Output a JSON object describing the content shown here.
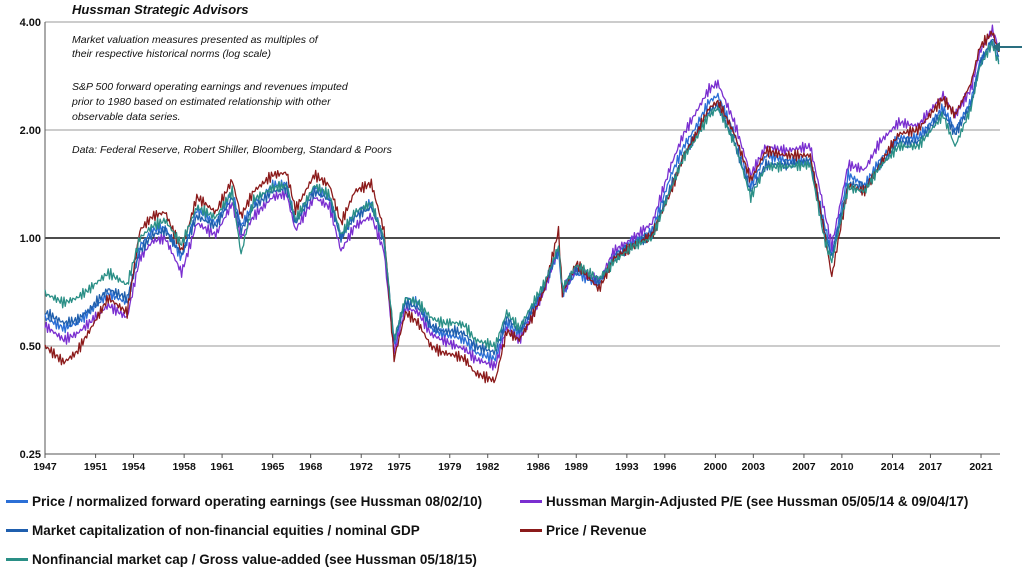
{
  "chart_data": {
    "type": "line",
    "title": "Hussman Strategic Advisors",
    "notes": [
      "Market valuation measures presented as multiples of",
      "their respective historical norms (log scale)",
      "S&P 500 forward operating earnings and revenues imputed",
      "prior to 1980  based on estimated relationship with other",
      "observable data series.",
      "Data: Federal Reserve, Robert Shiller,  Bloomberg, Standard & Poors"
    ],
    "y_scale": "log",
    "ylim": [
      0.25,
      4.0
    ],
    "yticks": [
      "0.25",
      "0.50",
      "1.00",
      "2.00",
      "4.00"
    ],
    "xlim": [
      1947,
      2022.5
    ],
    "xticks": [
      "1947",
      "1951",
      "1954",
      "1958",
      "1961",
      "1965",
      "1968",
      "1972",
      "1975",
      "1979",
      "1982",
      "1986",
      "1989",
      "1993",
      "1996",
      "2000",
      "2003",
      "2007",
      "2010",
      "2014",
      "2017",
      "2021"
    ],
    "reference_line": 1.0,
    "grid": true,
    "legend_position": "bottom",
    "x": [
      1947,
      1948.5,
      1949.5,
      1950.5,
      1952,
      1953.5,
      1954.5,
      1955.5,
      1956.5,
      1957.8,
      1959,
      1960.5,
      1961.8,
      1962.5,
      1963.5,
      1965,
      1966.1,
      1966.8,
      1968.3,
      1969.5,
      1970.4,
      1971.5,
      1972.8,
      1973.8,
      1974.6,
      1975.5,
      1976.5,
      1977.5,
      1978.4,
      1979.5,
      1980.2,
      1981,
      1982.6,
      1983.5,
      1984.5,
      1985.5,
      1986.5,
      1987.6,
      1987.9,
      1989,
      1990.8,
      1992,
      1993.5,
      1995,
      1996.5,
      1997.5,
      1998.5,
      1999.5,
      2000.2,
      2001.5,
      2002.8,
      2004,
      2005.5,
      2007.5,
      2008.6,
      2009.2,
      2010.5,
      2011.8,
      2013,
      2014.5,
      2016,
      2018,
      2018.95,
      2020.2,
      2020.9,
      2021.9,
      2022.4
    ],
    "series": [
      {
        "name": "Price / normalized forward operating earnings (see Hussman 08/02/10)",
        "color": "#2b6fd6",
        "values": [
          0.6,
          0.56,
          0.58,
          0.62,
          0.7,
          0.66,
          0.95,
          1.05,
          1.07,
          0.88,
          1.2,
          1.1,
          1.35,
          1.08,
          1.25,
          1.4,
          1.42,
          1.12,
          1.38,
          1.3,
          1.0,
          1.18,
          1.25,
          1.0,
          0.5,
          0.68,
          0.66,
          0.56,
          0.54,
          0.53,
          0.52,
          0.48,
          0.46,
          0.58,
          0.54,
          0.62,
          0.73,
          0.92,
          0.7,
          0.8,
          0.74,
          0.9,
          0.98,
          1.05,
          1.5,
          1.8,
          2.05,
          2.4,
          2.5,
          1.95,
          1.4,
          1.7,
          1.65,
          1.62,
          1.1,
          0.9,
          1.5,
          1.4,
          1.65,
          1.9,
          1.9,
          2.3,
          2.0,
          2.4,
          3.1,
          3.5,
          3.1
        ]
      },
      {
        "name": "Hussman Margin-Adjusted P/E (see Hussman 05/05/14 & 09/04/17)",
        "color": "#7a2fd0",
        "values": [
          0.57,
          0.52,
          0.54,
          0.58,
          0.65,
          0.6,
          0.88,
          0.98,
          1.0,
          0.8,
          1.1,
          1.02,
          1.25,
          1.0,
          1.15,
          1.3,
          1.33,
          1.05,
          1.3,
          1.22,
          0.92,
          1.08,
          1.15,
          0.92,
          0.48,
          0.64,
          0.62,
          0.54,
          0.52,
          0.5,
          0.49,
          0.46,
          0.44,
          0.56,
          0.52,
          0.6,
          0.72,
          0.93,
          0.71,
          0.82,
          0.76,
          0.92,
          1.0,
          1.1,
          1.6,
          1.95,
          2.25,
          2.6,
          2.7,
          2.1,
          1.5,
          1.8,
          1.75,
          1.8,
          1.2,
          0.95,
          1.6,
          1.55,
          1.85,
          2.1,
          2.05,
          2.5,
          2.2,
          2.6,
          3.3,
          3.8,
          3.4
        ]
      },
      {
        "name": "Market capitalization of non-financial equities / nominal GDP",
        "color": "#1f5fae",
        "values": [
          0.62,
          0.58,
          0.59,
          0.63,
          0.72,
          0.68,
          0.92,
          1.02,
          1.05,
          0.9,
          1.15,
          1.08,
          1.3,
          1.05,
          1.22,
          1.35,
          1.38,
          1.1,
          1.35,
          1.28,
          1.0,
          1.15,
          1.22,
          0.98,
          0.52,
          0.66,
          0.64,
          0.57,
          0.55,
          0.55,
          0.54,
          0.5,
          0.48,
          0.6,
          0.55,
          0.63,
          0.74,
          0.93,
          0.72,
          0.82,
          0.75,
          0.88,
          0.96,
          1.02,
          1.4,
          1.7,
          1.95,
          2.25,
          2.35,
          1.85,
          1.35,
          1.6,
          1.6,
          1.65,
          1.05,
          0.88,
          1.42,
          1.38,
          1.6,
          1.85,
          1.85,
          2.25,
          1.95,
          2.35,
          3.05,
          3.6,
          3.2
        ]
      },
      {
        "name": "Price / Revenue",
        "color": "#8b1a1a",
        "values": [
          0.5,
          0.45,
          0.48,
          0.55,
          0.68,
          0.62,
          1.05,
          1.15,
          1.18,
          0.92,
          1.3,
          1.18,
          1.45,
          1.15,
          1.35,
          1.5,
          1.52,
          1.2,
          1.5,
          1.4,
          1.1,
          1.35,
          1.42,
          1.05,
          0.46,
          0.62,
          0.58,
          0.5,
          0.48,
          0.47,
          0.46,
          0.42,
          0.4,
          0.55,
          0.52,
          0.6,
          0.72,
          1.05,
          0.7,
          0.85,
          0.72,
          0.88,
          0.95,
          1.02,
          1.35,
          1.7,
          1.95,
          2.3,
          2.4,
          1.95,
          1.45,
          1.75,
          1.7,
          1.7,
          1.05,
          0.78,
          1.4,
          1.35,
          1.6,
          1.95,
          2.0,
          2.45,
          2.2,
          2.7,
          3.4,
          3.75,
          3.3
        ]
      },
      {
        "name": "Nonfinancial market cap / Gross value-added (see Hussman 05/18/15)",
        "color": "#2a8f86",
        "values": [
          0.7,
          0.66,
          0.68,
          0.72,
          0.8,
          0.74,
          1.0,
          1.08,
          1.12,
          0.96,
          1.22,
          1.14,
          1.35,
          0.9,
          1.28,
          1.38,
          1.4,
          1.12,
          1.4,
          1.32,
          1.02,
          1.18,
          1.25,
          1.0,
          0.52,
          0.68,
          0.66,
          0.6,
          0.58,
          0.58,
          0.57,
          0.52,
          0.5,
          0.62,
          0.56,
          0.65,
          0.75,
          0.95,
          0.72,
          0.84,
          0.77,
          0.86,
          0.95,
          1.0,
          1.38,
          1.68,
          1.9,
          2.2,
          2.3,
          1.85,
          1.3,
          1.58,
          1.58,
          1.6,
          1.0,
          0.86,
          1.38,
          1.35,
          1.58,
          1.8,
          1.8,
          2.2,
          1.8,
          2.3,
          3.0,
          3.5,
          3.05
        ]
      }
    ]
  },
  "legend": [
    {
      "label": "Price / normalized forward operating earnings (see Hussman 08/02/10)",
      "color": "#2b6fd6"
    },
    {
      "label": "Hussman Margin-Adjusted P/E (see Hussman 05/05/14 & 09/04/17)",
      "color": "#7a2fd0"
    },
    {
      "label": "Market capitalization of non-financial equities / nominal GDP",
      "color": "#1f5fae"
    },
    {
      "label": "Price / Revenue",
      "color": "#8b1a1a"
    },
    {
      "label": "Nonfinancial market cap / Gross value-added (see Hussman 05/18/15)",
      "color": "#2a8f86"
    }
  ]
}
